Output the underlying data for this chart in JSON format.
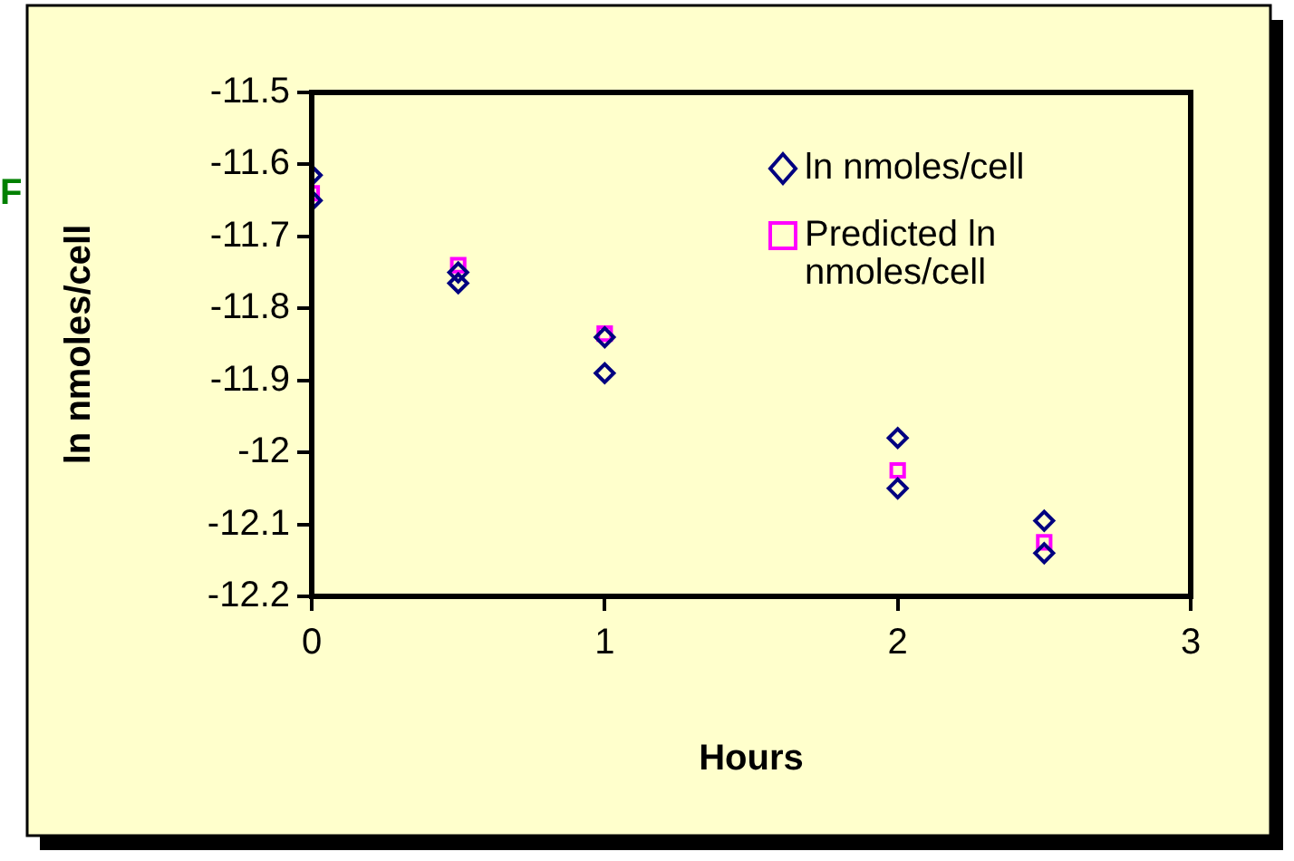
{
  "chart_data": {
    "type": "scatter",
    "xlabel": "Hours",
    "ylabel": "ln nmoles/cell",
    "annotations": [
      "F"
    ],
    "xlim": [
      0,
      3
    ],
    "xticks": [
      0,
      1,
      2,
      3
    ],
    "ylim": [
      -12.2,
      -11.5
    ],
    "yticks": [
      -12.2,
      -12.1,
      -12,
      -11.9,
      -11.8,
      -11.7,
      -11.6,
      -11.5
    ],
    "grid": false,
    "legend": "top right",
    "series": [
      {
        "name": "ln nmoles/cell",
        "color": "#000080",
        "marker": "diamond",
        "x": [
          0,
          0,
          0.5,
          0.5,
          1,
          1,
          2,
          2,
          2.5,
          2.5
        ],
        "values": [
          -11.615,
          -11.65,
          -11.75,
          -11.765,
          -11.84,
          -11.89,
          -11.98,
          -12.05,
          -12.095,
          -12.14
        ]
      },
      {
        "name": "Predicted ln nmoles/cell",
        "color": "#ff00ff",
        "marker": "square",
        "x": [
          0,
          0.5,
          1,
          2,
          2.5
        ],
        "values": [
          -11.64,
          -11.74,
          -11.835,
          -12.025,
          -12.125
        ]
      }
    ]
  }
}
